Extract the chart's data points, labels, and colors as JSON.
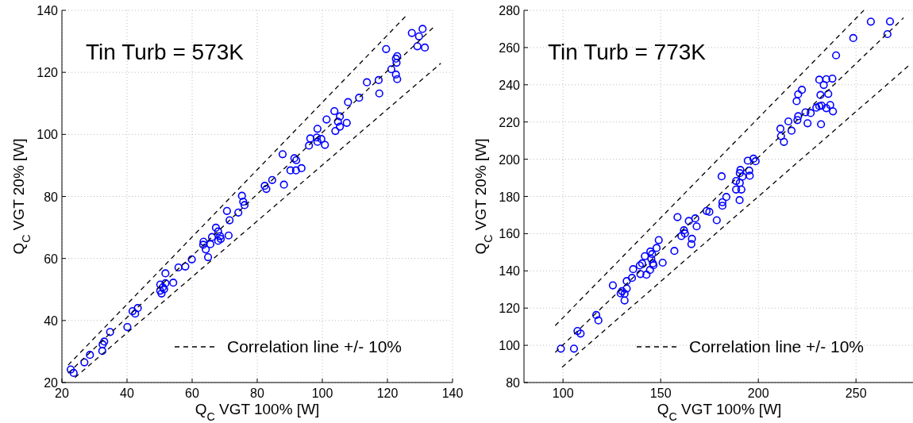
{
  "chart_data": [
    {
      "type": "scatter",
      "title": "Tin Turb = 573K",
      "xlabel": "Q$_{C}$ VGT 100% [W]",
      "ylabel": "Q$_{C}$ VGT 20% [W]",
      "xlim": [
        20,
        140
      ],
      "ylim": [
        20,
        140
      ],
      "xticks": [
        20,
        40,
        60,
        80,
        100,
        120,
        140
      ],
      "yticks": [
        20,
        40,
        60,
        80,
        100,
        120,
        140
      ],
      "grid": true,
      "legend": "bottom right",
      "series": [
        {
          "marker": "circle",
          "color": "#0000ff",
          "x": [
            127.5,
            130.8,
            129.7,
            129.2,
            131.5,
            119.6,
            123.0,
            122.6,
            122.8,
            121.2,
            122.6,
            123.0,
            113.7,
            117.3,
            117.5,
            111.3,
            107.9,
            103.7,
            105.4,
            101.3,
            104.8,
            105.4,
            104.0,
            107.5,
            98.5,
            96.3,
            98.3,
            99.7,
            98.5,
            95.9,
            100.8,
            87.8,
            91.4,
            92.0,
            90.2,
            91.9,
            93.6,
            84.6,
            82.3,
            82.8,
            88.2,
            75.3,
            75.7,
            76.1,
            70.7,
            74.2,
            71.5,
            67.3,
            68.0,
            66.1,
            68.6,
            68.8,
            68.0,
            71.2,
            63.5,
            63.4,
            65.6,
            64.2,
            64.9,
            59.9,
            57.9,
            55.8,
            51.8,
            54.2,
            51.8,
            50.2,
            51.0,
            51.4,
            50.2,
            50.6,
            43.3,
            41.7,
            42.5,
            40.1,
            34.8,
            33.0,
            32.5,
            32.4,
            28.6,
            26.9,
            22.7,
            23.6
          ],
          "values": [
            132.7,
            134.0,
            131.6,
            128.4,
            128.0,
            127.5,
            125.2,
            124.4,
            123.1,
            121.0,
            119.3,
            117.8,
            116.8,
            117.5,
            113.2,
            111.8,
            110.4,
            107.5,
            105.8,
            104.8,
            104.1,
            102.5,
            101.1,
            103.7,
            101.8,
            98.7,
            99.0,
            98.5,
            97.6,
            96.4,
            96.6,
            93.6,
            92.3,
            91.7,
            88.4,
            88.4,
            89.1,
            85.3,
            83.4,
            82.4,
            83.8,
            80.2,
            78.3,
            77.2,
            75.3,
            74.8,
            72.3,
            69.9,
            68.7,
            66.9,
            67.2,
            66.3,
            65.7,
            67.4,
            65.4,
            64.4,
            64.6,
            62.9,
            60.4,
            59.7,
            57.4,
            57.1,
            55.2,
            52.2,
            52.0,
            51.6,
            50.7,
            50.1,
            49.6,
            48.7,
            44.0,
            43.0,
            42.2,
            37.9,
            36.3,
            33.2,
            32.3,
            30.2,
            28.9,
            26.5,
            24.2,
            23.1
          ]
        },
        {
          "type": "line",
          "name": "Correlation line +/- 10%",
          "color": "#000000",
          "line_style": "dashed",
          "x": [
            21.9,
            125.8
          ],
          "values": [
            25.6,
            138.3
          ]
        },
        {
          "type": "line",
          "color": "#000000",
          "line_style": "dashed",
          "x": [
            21.9,
            134.0
          ],
          "values": [
            23.0,
            134.4
          ]
        },
        {
          "type": "line",
          "color": "#000000",
          "line_style": "dashed",
          "x": [
            24.0,
            136.4
          ],
          "values": [
            21.6,
            122.9
          ]
        }
      ]
    },
    {
      "type": "scatter",
      "title": "Tin Turb = 773K",
      "xlabel": "Q$_{C}$ VGT 100% [W]",
      "ylabel": "Q$_{C}$ VGT 20% [W]",
      "xlim": [
        80,
        280
      ],
      "ylim": [
        80,
        280
      ],
      "xticks": [
        100,
        150,
        200,
        250
      ],
      "yticks": [
        80,
        100,
        120,
        140,
        160,
        180,
        200,
        220,
        240,
        260,
        280
      ],
      "grid": true,
      "legend": "bottom right",
      "series": [
        {
          "marker": "circle",
          "color": "#0000ff",
          "x": [
            257.6,
            267.4,
            266.1,
            248.6,
            239.8,
            231.2,
            234.8,
            237.9,
            233.5,
            222.3,
            220.4,
            219.6,
            231.8,
            235.8,
            224.1,
            226.8,
            220.4,
            220.0,
            215.4,
            225.2,
            232.1,
            229.7,
            231.2,
            232.4,
            236.8,
            234.8,
            238.2,
            211.3,
            211.6,
            217.0,
            213.1,
            194.6,
            197.5,
            198.6,
            190.8,
            195.3,
            190.5,
            191.9,
            195.6,
            181.2,
            188.6,
            190.5,
            188.6,
            191.3,
            190.4,
            183.6,
            181.6,
            181.6,
            173.5,
            174.9,
            178.7,
            167.7,
            168.4,
            164.4,
            158.6,
            161.9,
            162.4,
            160.6,
            166.0,
            165.7,
            157.0,
            149.0,
            147.9,
            151.0,
            144.7,
            145.6,
            141.9,
            145.2,
            140.5,
            139.3,
            146.0,
            146.3,
            144.5,
            142.7,
            139.6,
            135.9,
            135.3,
            132.6,
            132.6,
            131.5,
            130.2,
            129.5,
            131.5,
            125.5,
            117.0,
            118.1,
            107.4,
            109.0,
            98.9,
            105.6
          ],
          "values": [
            273.9,
            274.0,
            267.2,
            265.1,
            255.8,
            242.7,
            243.0,
            243.3,
            239.9,
            237.3,
            234.9,
            231.2,
            234.5,
            235.1,
            225.2,
            224.8,
            223.1,
            221.0,
            220.3,
            219.3,
            218.8,
            227.7,
            228.5,
            228.8,
            229.1,
            227.4,
            225.7,
            216.4,
            212.4,
            215.3,
            209.3,
            199.2,
            200.3,
            198.9,
            194.2,
            193.9,
            192.5,
            190.7,
            191.1,
            190.8,
            188.3,
            187.3,
            183.7,
            183.7,
            178.0,
            179.7,
            176.9,
            175.0,
            172.2,
            171.7,
            167.2,
            168.2,
            163.9,
            166.8,
            168.9,
            161.8,
            160.1,
            158.7,
            157.2,
            154.4,
            150.7,
            156.5,
            152.3,
            144.4,
            150.4,
            149.0,
            147.9,
            146.4,
            144.0,
            142.9,
            144.0,
            143.0,
            140.5,
            137.9,
            138.3,
            140.9,
            136.2,
            134.5,
            130.5,
            127.7,
            129.1,
            127.9,
            124.1,
            132.2,
            116.3,
            113.4,
            107.7,
            106.3,
            98.2,
            98.2
          ]
        },
        {
          "type": "line",
          "name": "Correlation line +/- 10%",
          "color": "#000000",
          "line_style": "dashed",
          "x": [
            96.0,
            254.0
          ],
          "values": [
            110.6,
            280.0
          ]
        },
        {
          "type": "line",
          "color": "#000000",
          "line_style": "dashed",
          "x": [
            96.0,
            274.4
          ],
          "values": [
            96.2,
            276.0
          ]
        },
        {
          "type": "line",
          "color": "#000000",
          "line_style": "dashed",
          "x": [
            99.5,
            277.5
          ],
          "values": [
            88.2,
            250.7
          ]
        }
      ]
    }
  ]
}
